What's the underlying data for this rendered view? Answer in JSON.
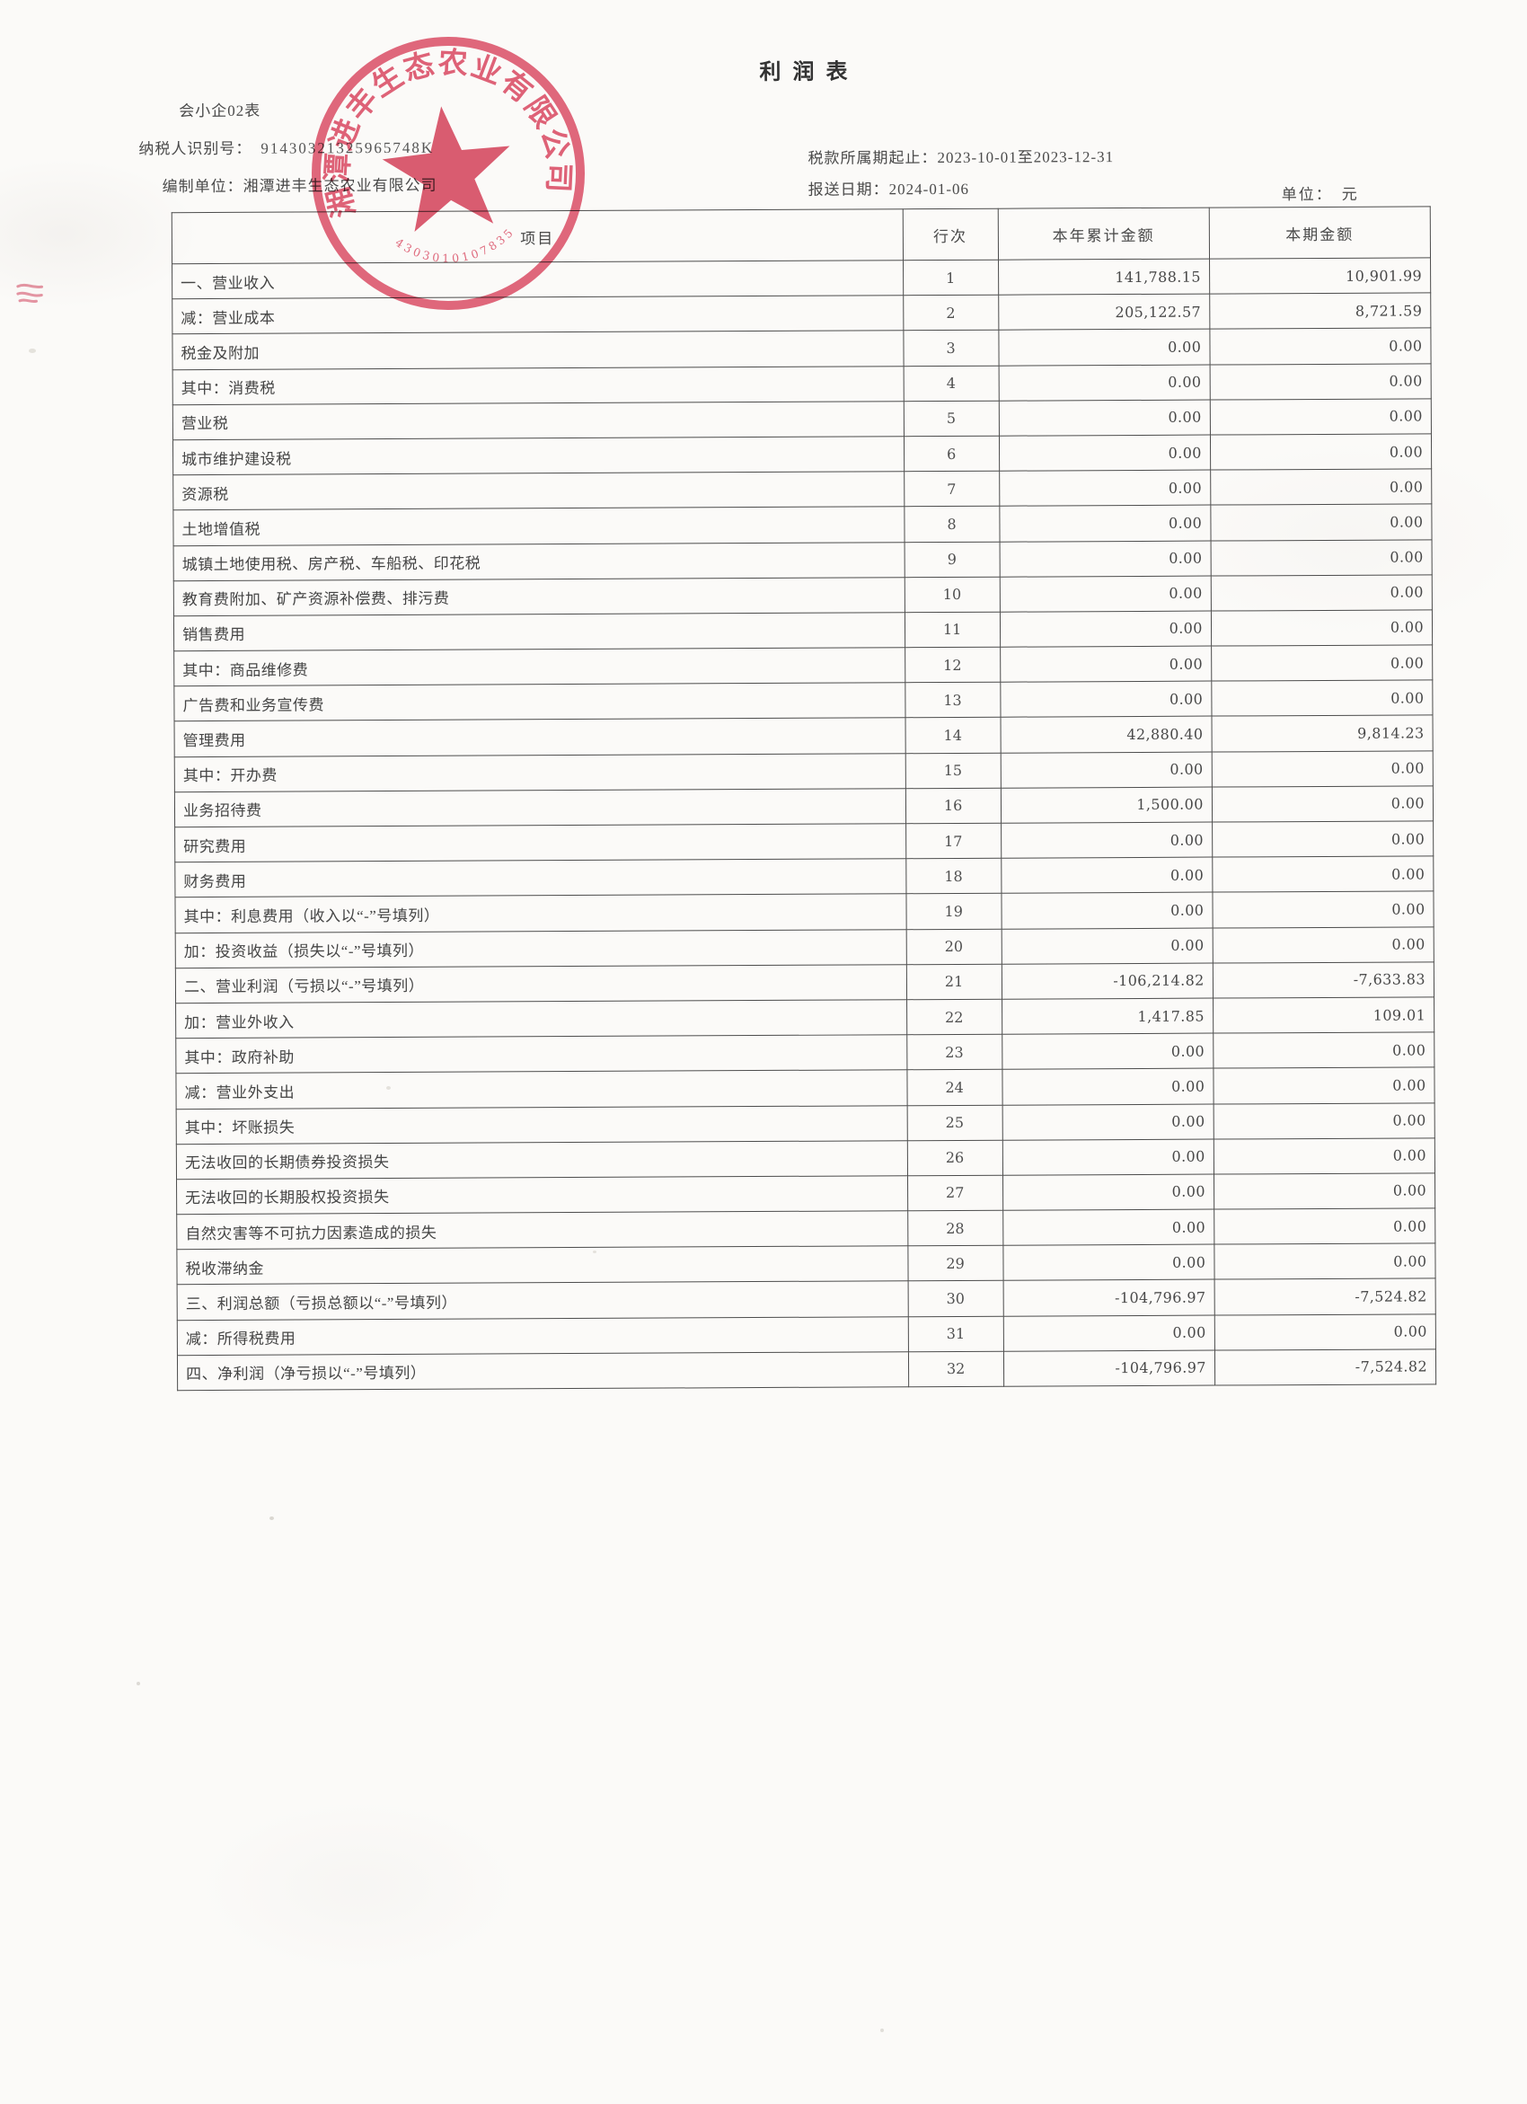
{
  "document": {
    "form_code": "会小企02表",
    "title": "利润表",
    "taxpayer_id_label": "纳税人识别号：",
    "taxpayer_id": "91430321325965748K",
    "prepared_by_label": "编制单位：",
    "prepared_by": "湘潭进丰生态农业有限公司",
    "tax_period_label": "税款所属期起止：",
    "tax_period": "2023-10-01至2023-12-31",
    "report_date_label": "报送日期：",
    "report_date": "2024-01-06",
    "unit_label": "单位：",
    "unit": "元"
  },
  "seal": {
    "company": "湘潭进丰生态农业有限公司",
    "code": "4303010107835",
    "color": "#dc455f",
    "star_color": "#d5334e"
  },
  "table": {
    "headers": {
      "item": "项目",
      "line": "行次",
      "ytd": "本年累计金额",
      "period": "本期金额"
    },
    "rows": [
      {
        "item": "一、营业收入",
        "line": "1",
        "ytd": "141,788.15",
        "period": "10,901.99"
      },
      {
        "item": "减：营业成本",
        "line": "2",
        "ytd": "205,122.57",
        "period": "8,721.59"
      },
      {
        "item": "税金及附加",
        "line": "3",
        "ytd": "0.00",
        "period": "0.00"
      },
      {
        "item": "其中：消费税",
        "line": "4",
        "ytd": "0.00",
        "period": "0.00"
      },
      {
        "item": "营业税",
        "line": "5",
        "ytd": "0.00",
        "period": "0.00"
      },
      {
        "item": "城市维护建设税",
        "line": "6",
        "ytd": "0.00",
        "period": "0.00"
      },
      {
        "item": "资源税",
        "line": "7",
        "ytd": "0.00",
        "period": "0.00"
      },
      {
        "item": "土地增值税",
        "line": "8",
        "ytd": "0.00",
        "period": "0.00"
      },
      {
        "item": "城镇土地使用税、房产税、车船税、印花税",
        "line": "9",
        "ytd": "0.00",
        "period": "0.00"
      },
      {
        "item": "教育费附加、矿产资源补偿费、排污费",
        "line": "10",
        "ytd": "0.00",
        "period": "0.00"
      },
      {
        "item": "销售费用",
        "line": "11",
        "ytd": "0.00",
        "period": "0.00"
      },
      {
        "item": "其中：商品维修费",
        "line": "12",
        "ytd": "0.00",
        "period": "0.00"
      },
      {
        "item": "广告费和业务宣传费",
        "line": "13",
        "ytd": "0.00",
        "period": "0.00"
      },
      {
        "item": "管理费用",
        "line": "14",
        "ytd": "42,880.40",
        "period": "9,814.23"
      },
      {
        "item": "其中：开办费",
        "line": "15",
        "ytd": "0.00",
        "period": "0.00"
      },
      {
        "item": "业务招待费",
        "line": "16",
        "ytd": "1,500.00",
        "period": "0.00"
      },
      {
        "item": "研究费用",
        "line": "17",
        "ytd": "0.00",
        "period": "0.00"
      },
      {
        "item": "财务费用",
        "line": "18",
        "ytd": "0.00",
        "period": "0.00"
      },
      {
        "item": "其中：利息费用（收入以“-”号填列）",
        "line": "19",
        "ytd": "0.00",
        "period": "0.00"
      },
      {
        "item": "加：投资收益（损失以“-”号填列）",
        "line": "20",
        "ytd": "0.00",
        "period": "0.00"
      },
      {
        "item": "二、营业利润（亏损以“-”号填列）",
        "line": "21",
        "ytd": "-106,214.82",
        "period": "-7,633.83"
      },
      {
        "item": "加：营业外收入",
        "line": "22",
        "ytd": "1,417.85",
        "period": "109.01"
      },
      {
        "item": "其中：政府补助",
        "line": "23",
        "ytd": "0.00",
        "period": "0.00"
      },
      {
        "item": "减：营业外支出",
        "line": "24",
        "ytd": "0.00",
        "period": "0.00"
      },
      {
        "item": "其中：坏账损失",
        "line": "25",
        "ytd": "0.00",
        "period": "0.00"
      },
      {
        "item": "无法收回的长期债券投资损失",
        "line": "26",
        "ytd": "0.00",
        "period": "0.00"
      },
      {
        "item": "无法收回的长期股权投资损失",
        "line": "27",
        "ytd": "0.00",
        "period": "0.00"
      },
      {
        "item": "自然灾害等不可抗力因素造成的损失",
        "line": "28",
        "ytd": "0.00",
        "period": "0.00"
      },
      {
        "item": "税收滞纳金",
        "line": "29",
        "ytd": "0.00",
        "period": "0.00"
      },
      {
        "item": "三、利润总额（亏损总额以“-”号填列）",
        "line": "30",
        "ytd": "-104,796.97",
        "period": "-7,524.82"
      },
      {
        "item": "减：所得税费用",
        "line": "31",
        "ytd": "0.00",
        "period": "0.00"
      },
      {
        "item": "四、净利润（净亏损以“-”号填列）",
        "line": "32",
        "ytd": "-104,796.97",
        "period": "-7,524.82"
      }
    ]
  }
}
